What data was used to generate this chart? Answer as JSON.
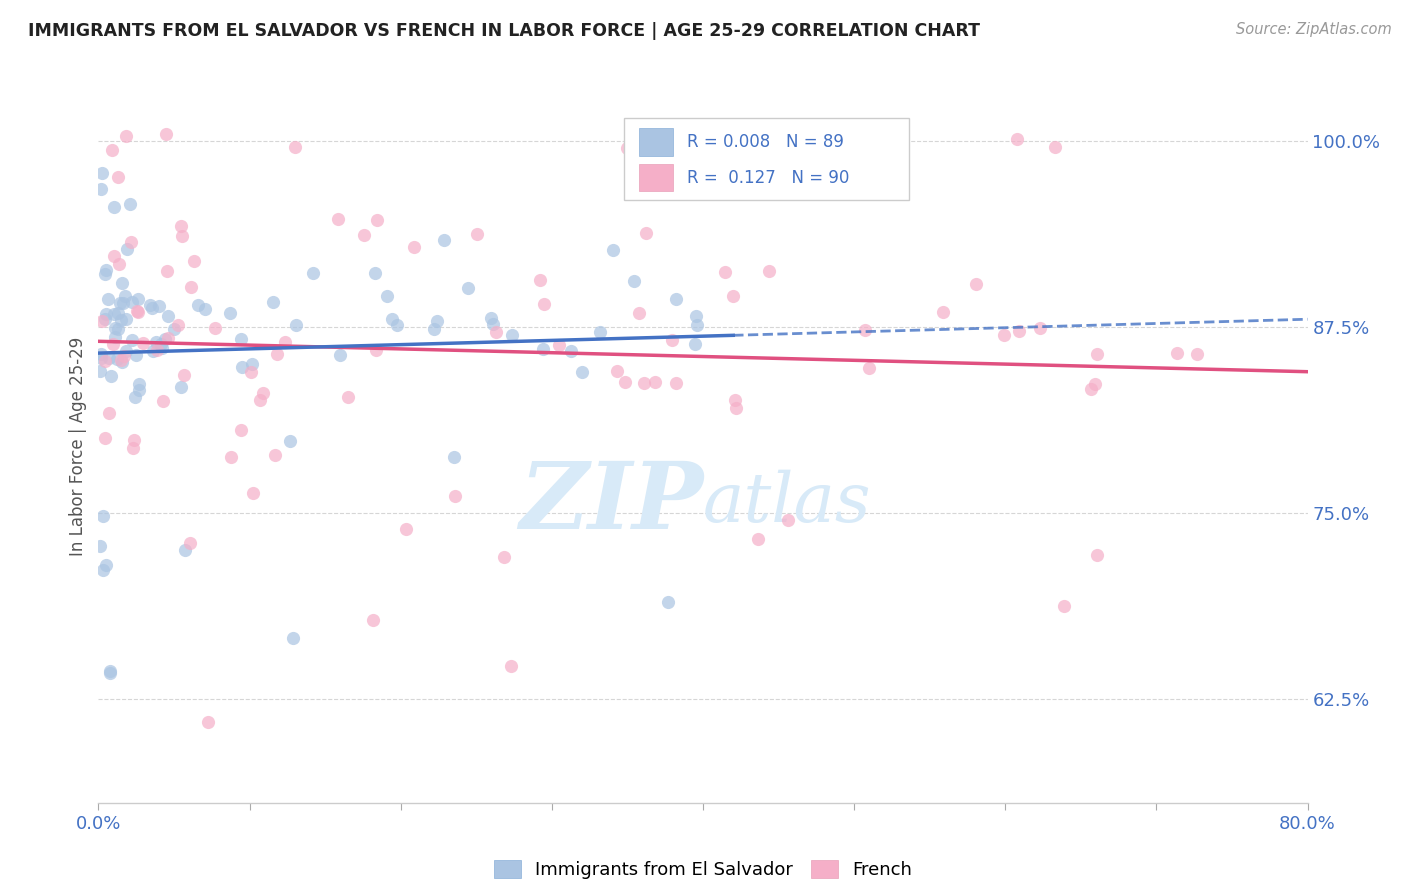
{
  "title": "IMMIGRANTS FROM EL SALVADOR VS FRENCH IN LABOR FORCE | AGE 25-29 CORRELATION CHART",
  "source": "Source: ZipAtlas.com",
  "ylabel": "In Labor Force | Age 25-29",
  "xlim": [
    0.0,
    0.8
  ],
  "ylim": [
    0.555,
    1.035
  ],
  "yticks": [
    0.625,
    0.75,
    0.875,
    1.0
  ],
  "ytick_labels": [
    "62.5%",
    "75.0%",
    "87.5%",
    "100.0%"
  ],
  "r_salvador": 0.008,
  "n_salvador": 89,
  "r_french": 0.127,
  "n_french": 90,
  "color_salvador": "#aac4e2",
  "color_french": "#f5afc8",
  "line_color_salvador": "#4472c4",
  "line_color_french": "#e05080",
  "background_color": "#ffffff",
  "watermark_zip": "ZIP",
  "watermark_atlas": "atlas",
  "watermark_color": "#d8eaf8"
}
